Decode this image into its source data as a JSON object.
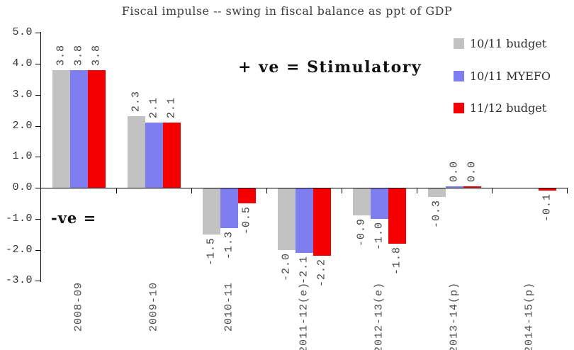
{
  "chart_data": {
    "type": "bar",
    "title": "Fiscal impulse -- swing in fiscal balance as ppt of GDP",
    "categories": [
      "2008-09",
      "2009-10",
      "2010-11",
      "2011-12(e)",
      "2012-13(e)",
      "2013-14(p)",
      "2014-15(p)"
    ],
    "series": [
      {
        "name": "10/11 budget",
        "color": "#c2c2c2",
        "values": [
          3.8,
          2.3,
          -1.5,
          -2.0,
          -0.9,
          -0.3,
          null
        ]
      },
      {
        "name": "10/11 MYEFO",
        "color": "#7e7ef0",
        "values": [
          3.8,
          2.1,
          -1.3,
          -2.1,
          -1.0,
          0.0,
          null
        ]
      },
      {
        "name": "11/12 budget",
        "color": "#f50000",
        "values": [
          3.8,
          2.1,
          -0.5,
          -2.2,
          -1.8,
          0.0,
          -0.1
        ]
      }
    ],
    "xlabel": "",
    "ylabel": "",
    "ylim": [
      -3.0,
      5.0
    ],
    "y_ticks": [
      "5.0",
      "4.0",
      "3.0",
      "2.0",
      "1.0",
      "0.0",
      "-1.0",
      "-2.0",
      "-3.0"
    ],
    "grid": false,
    "legend_position": "upper right",
    "value_labels_rotation": 90,
    "annotations": [
      {
        "text": "+ ve = Stimulatory",
        "position": "upper middle"
      },
      {
        "text": "-ve =",
        "position": "left below zero line"
      }
    ]
  }
}
